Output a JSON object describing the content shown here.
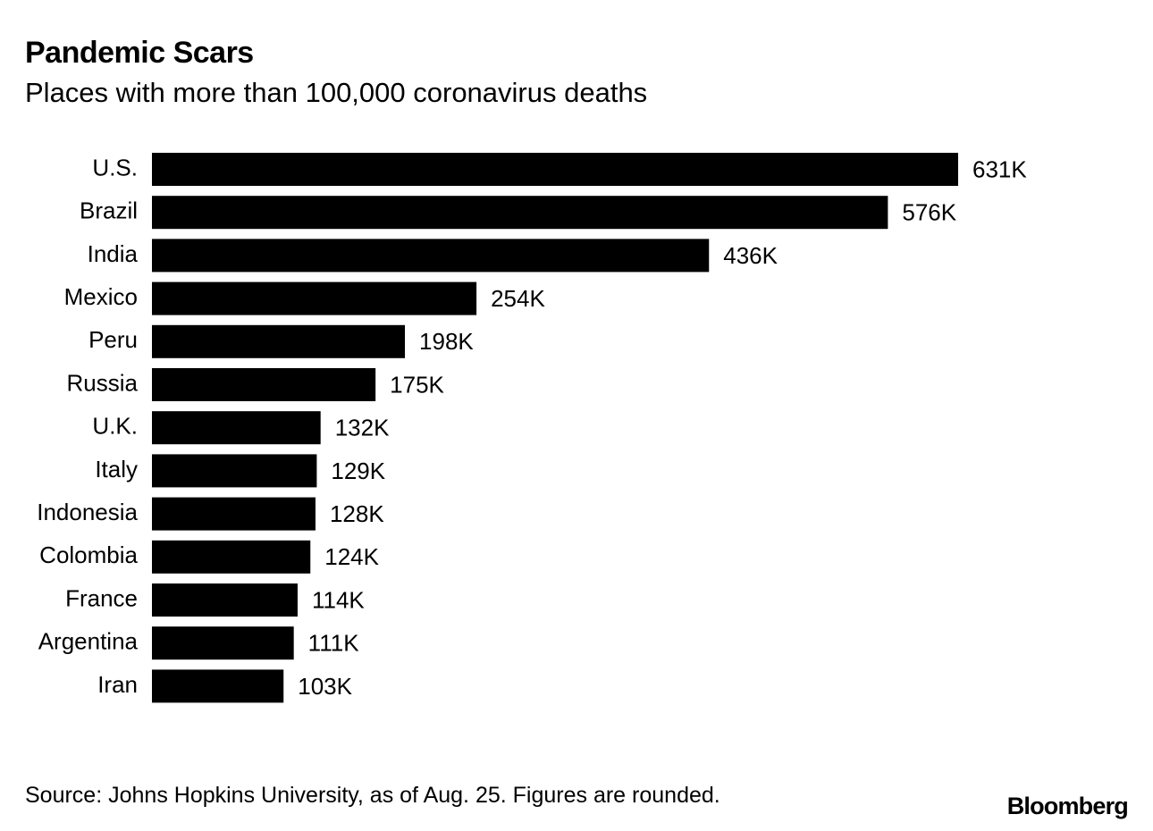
{
  "header": {
    "title": "Pandemic Scars",
    "subtitle": "Places with more than 100,000 coronavirus deaths"
  },
  "chart_data": {
    "type": "bar",
    "orientation": "horizontal",
    "title": "Pandemic Scars",
    "subtitle": "Places with more than 100,000 coronavirus deaths",
    "xlabel": "",
    "ylabel": "",
    "unit": "K",
    "categories": [
      "U.S.",
      "Brazil",
      "India",
      "Mexico",
      "Peru",
      "Russia",
      "U.K.",
      "Italy",
      "Indonesia",
      "Colombia",
      "France",
      "Argentina",
      "Iran"
    ],
    "values": [
      631,
      576,
      436,
      254,
      198,
      175,
      132,
      129,
      128,
      124,
      114,
      111,
      103
    ],
    "labels": [
      "631K",
      "576K",
      "436K",
      "254K",
      "198K",
      "175K",
      "132K",
      "129K",
      "128K",
      "124K",
      "114K",
      "111K",
      "103K"
    ],
    "xlim": [
      0,
      631
    ],
    "grid": false,
    "bar_color": "#000000"
  },
  "footer": {
    "source": "Source: Johns Hopkins University, as of Aug. 25. Figures are rounded.",
    "brand": "Bloomberg"
  }
}
